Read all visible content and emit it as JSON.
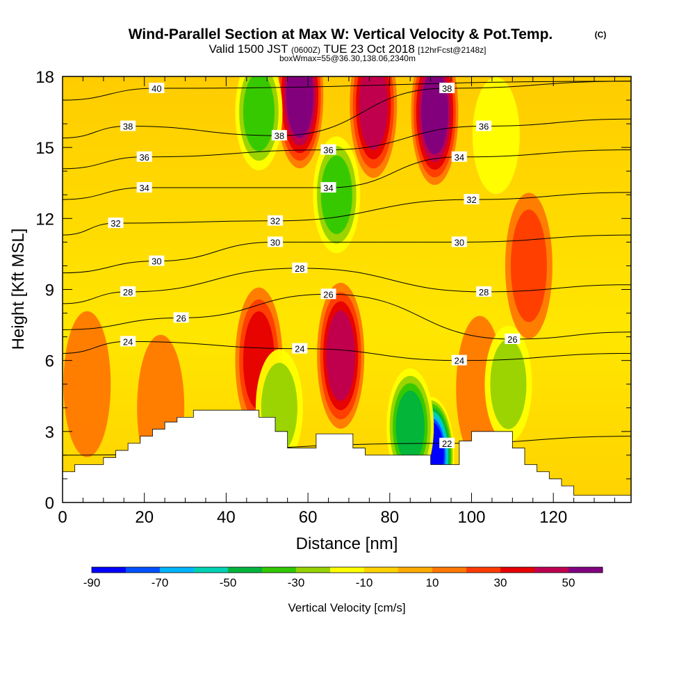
{
  "header": {
    "title": "Wind-Parallel Section at Max W: Vertical Velocity & Pot.Temp.",
    "copyright": "(C)",
    "valid_main": "Valid 1500 JST",
    "valid_utc": "(0600Z)",
    "valid_date": "TUE 23 Oct 2018",
    "forecast": "[12hrFcst@2148z]",
    "box": "boxWmax=55@36.30,138.06,2340m"
  },
  "chart_data": {
    "type": "heatmap",
    "xlabel": "Distance [nm]",
    "ylabel": "Height [Kft MSL]",
    "xlim": [
      0,
      139
    ],
    "ylim": [
      0,
      18
    ],
    "x_ticks": [
      0,
      20,
      40,
      60,
      80,
      100,
      120
    ],
    "y_ticks": [
      0,
      3,
      6,
      9,
      12,
      15,
      18
    ],
    "colorbar": {
      "label": "Vertical Velocity [cm/s]",
      "tick_labels": [
        "-90",
        "-70",
        "-50",
        "-30",
        "-10",
        "10",
        "30",
        "50"
      ],
      "colors": [
        "#0000ff",
        "#0050ff",
        "#00b4ff",
        "#00d2b4",
        "#00b43c",
        "#32c800",
        "#96d200",
        "#ffff00",
        "#ffd200",
        "#ffaa00",
        "#ff7800",
        "#ff3c00",
        "#e60000",
        "#be0050",
        "#800080"
      ]
    },
    "velocity_features": [
      {
        "x": 48,
        "y": 6.0,
        "w": 35,
        "kind": "updraft"
      },
      {
        "x": 68,
        "y": 6.2,
        "w": 40,
        "kind": "updraft"
      },
      {
        "x": 58,
        "y": 17.2,
        "w": 55,
        "kind": "updraft"
      },
      {
        "x": 76,
        "y": 16.8,
        "w": 40,
        "kind": "updraft"
      },
      {
        "x": 91,
        "y": 16.5,
        "w": 55,
        "kind": "updraft"
      },
      {
        "x": 114,
        "y": 10.0,
        "w": 20,
        "kind": "updraft"
      },
      {
        "x": 6,
        "y": 5.0,
        "w": 15,
        "kind": "updraft"
      },
      {
        "x": 24,
        "y": 4.0,
        "w": 12,
        "kind": "updraft"
      },
      {
        "x": 102,
        "y": 4.8,
        "w": 12,
        "kind": "updraft"
      },
      {
        "x": 90,
        "y": 2.0,
        "w": -90,
        "kind": "downdraft"
      },
      {
        "x": 85,
        "y": 3.2,
        "w": -45,
        "kind": "downdraft"
      },
      {
        "x": 67,
        "y": 13.0,
        "w": -35,
        "kind": "downdraft"
      },
      {
        "x": 48,
        "y": 16.5,
        "w": -30,
        "kind": "downdraft"
      },
      {
        "x": 53,
        "y": 4.0,
        "w": -20,
        "kind": "downdraft"
      },
      {
        "x": 109,
        "y": 5.0,
        "w": -20,
        "kind": "downdraft"
      },
      {
        "x": 106,
        "y": 15.5,
        "w": -15,
        "kind": "downdraft"
      }
    ],
    "theta_contours": [
      {
        "value": 22,
        "label_x": 94,
        "label_y": 2.5
      },
      {
        "value": 24,
        "label_x": 16,
        "label_y": 6.8
      },
      {
        "value": 24,
        "label_x": 58,
        "label_y": 6.5
      },
      {
        "value": 24,
        "label_x": 97,
        "label_y": 6.0
      },
      {
        "value": 26,
        "label_x": 29,
        "label_y": 7.8
      },
      {
        "value": 26,
        "label_x": 65,
        "label_y": 8.8
      },
      {
        "value": 26,
        "label_x": 110,
        "label_y": 6.9
      },
      {
        "value": 28,
        "label_x": 16,
        "label_y": 8.9
      },
      {
        "value": 28,
        "label_x": 58,
        "label_y": 9.9
      },
      {
        "value": 28,
        "label_x": 103,
        "label_y": 8.9
      },
      {
        "value": 30,
        "label_x": 23,
        "label_y": 10.2
      },
      {
        "value": 30,
        "label_x": 52,
        "label_y": 11.0
      },
      {
        "value": 30,
        "label_x": 97,
        "label_y": 11.0
      },
      {
        "value": 32,
        "label_x": 13,
        "label_y": 11.8
      },
      {
        "value": 32,
        "label_x": 52,
        "label_y": 11.9
      },
      {
        "value": 32,
        "label_x": 100,
        "label_y": 12.8
      },
      {
        "value": 34,
        "label_x": 20,
        "label_y": 13.3
      },
      {
        "value": 34,
        "label_x": 65,
        "label_y": 13.3
      },
      {
        "value": 34,
        "label_x": 97,
        "label_y": 14.6
      },
      {
        "value": 36,
        "label_x": 20,
        "label_y": 14.6
      },
      {
        "value": 36,
        "label_x": 65,
        "label_y": 14.9
      },
      {
        "value": 36,
        "label_x": 103,
        "label_y": 15.9
      },
      {
        "value": 38,
        "label_x": 16,
        "label_y": 15.9
      },
      {
        "value": 38,
        "label_x": 53,
        "label_y": 15.5
      },
      {
        "value": 38,
        "label_x": 94,
        "label_y": 17.5
      },
      {
        "value": 40,
        "label_x": 23,
        "label_y": 17.5
      }
    ],
    "terrain": [
      {
        "x": 0,
        "h": 1.3
      },
      {
        "x": 3,
        "h": 1.6
      },
      {
        "x": 10,
        "h": 1.9
      },
      {
        "x": 13,
        "h": 2.2
      },
      {
        "x": 16,
        "h": 2.5
      },
      {
        "x": 19,
        "h": 2.8
      },
      {
        "x": 22,
        "h": 3.1
      },
      {
        "x": 25,
        "h": 3.4
      },
      {
        "x": 28,
        "h": 3.6
      },
      {
        "x": 32,
        "h": 3.9
      },
      {
        "x": 48,
        "h": 3.6
      },
      {
        "x": 52,
        "h": 3.0
      },
      {
        "x": 55,
        "h": 2.3
      },
      {
        "x": 62,
        "h": 2.9
      },
      {
        "x": 71,
        "h": 2.3
      },
      {
        "x": 74,
        "h": 2.0
      },
      {
        "x": 90,
        "h": 1.6
      },
      {
        "x": 97,
        "h": 2.6
      },
      {
        "x": 100,
        "h": 3.0
      },
      {
        "x": 110,
        "h": 2.3
      },
      {
        "x": 113,
        "h": 1.6
      },
      {
        "x": 116,
        "h": 1.3
      },
      {
        "x": 119,
        "h": 1.0
      },
      {
        "x": 122,
        "h": 0.7
      },
      {
        "x": 125,
        "h": 0.3
      },
      {
        "x": 139,
        "h": 0.3
      }
    ]
  }
}
